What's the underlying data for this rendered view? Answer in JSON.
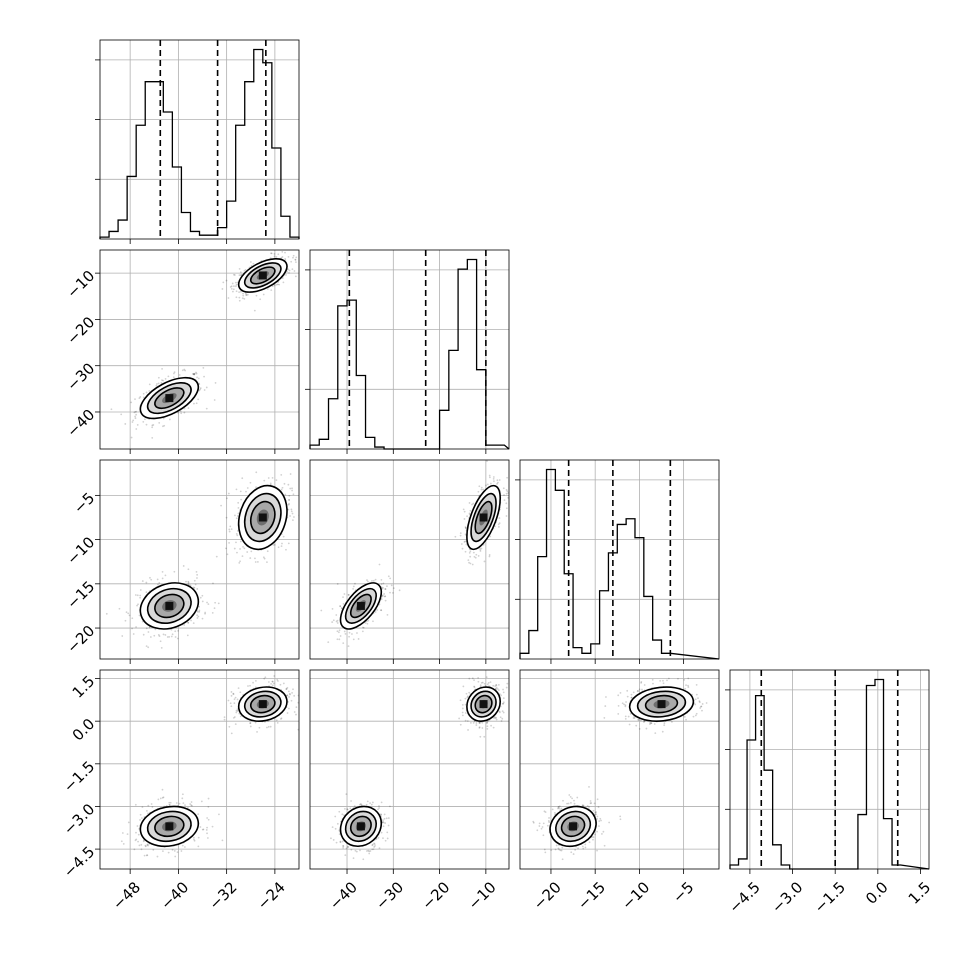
{
  "chart_data": {
    "type": "corner",
    "grid": true,
    "parameters": [
      {
        "name": "",
        "range": [
          -53,
          -20
        ],
        "ticks": [
          -48,
          -40,
          -32,
          -24
        ],
        "tick_labels": [
          "−48",
          "−40",
          "−32",
          "−24"
        ],
        "quantiles": [
          -43,
          -33.5,
          -25.5
        ],
        "modes": [
          {
            "center": -41.5,
            "sd": 2.4,
            "weight": 0.5
          },
          {
            "center": -26,
            "sd": 2.0,
            "weight": 0.5
          }
        ],
        "histogram": {
          "bin_width": 1.5,
          "counts": [
            0.01,
            0.04,
            0.1,
            0.33,
            0.6,
            0.83,
            0.83,
            0.67,
            0.38,
            0.14,
            0.04,
            0.02,
            0.02,
            0.06,
            0.2,
            0.6,
            0.83,
            1.0,
            0.93,
            0.48,
            0.12,
            0.01
          ]
        }
      },
      {
        "name": "",
        "range": [
          -48,
          -5
        ],
        "ticks": [
          -40,
          -30,
          -20,
          -10
        ],
        "tick_labels": [
          "−40",
          "−30",
          "−20",
          "−10"
        ],
        "quantiles": [
          -39.5,
          -23,
          -10
        ],
        "modes": [
          {
            "center": -37,
            "sd": 2.2,
            "weight": 0.5
          },
          {
            "center": -10.5,
            "sd": 1.8,
            "weight": 0.5
          }
        ],
        "histogram": {
          "bin_width": 2.0,
          "counts": [
            0.02,
            0.05,
            0.26,
            0.74,
            0.77,
            0.38,
            0.06,
            0.01,
            0.0,
            0.0,
            0.0,
            0.0,
            0.0,
            0.0,
            0.2,
            0.51,
            0.93,
            0.98,
            0.41,
            0.02,
            0.02
          ]
        }
      },
      {
        "name": "",
        "range": [
          -23.5,
          -1
        ],
        "ticks": [
          -20,
          -15,
          -10,
          -5
        ],
        "tick_labels": [
          "−20",
          "−15",
          "−10",
          "−5"
        ],
        "quantiles": [
          -18,
          -13,
          -6.5
        ],
        "modes": [
          {
            "center": -17.5,
            "sd": 1.3,
            "weight": 0.5
          },
          {
            "center": -7.5,
            "sd": 1.8,
            "weight": 0.5
          }
        ],
        "histogram": {
          "bin_width": 1.0,
          "counts": [
            0.03,
            0.15,
            0.54,
            1.0,
            0.89,
            0.45,
            0.06,
            0.03,
            0.08,
            0.36,
            0.56,
            0.71,
            0.74,
            0.64,
            0.33,
            0.1,
            0.03
          ]
        }
      },
      {
        "name": "",
        "range": [
          -5.2,
          1.8
        ],
        "ticks": [
          -4.5,
          -3.0,
          -1.5,
          0.0,
          1.5
        ],
        "tick_labels": [
          "−4.5",
          "−3.0",
          "−1.5",
          "0.0",
          "1.5"
        ],
        "quantiles": [
          -4.1,
          -1.5,
          0.7
        ],
        "modes": [
          {
            "center": -3.7,
            "sd": 0.35,
            "weight": 0.5
          },
          {
            "center": 0.6,
            "sd": 0.3,
            "weight": 0.5
          }
        ],
        "histogram": {
          "bin_width": 0.3,
          "counts": [
            0.02,
            0.05,
            0.64,
            0.86,
            0.49,
            0.12,
            0.02,
            0.0,
            0.0,
            0.0,
            0.0,
            0.0,
            0.0,
            0.0,
            0.0,
            0.27,
            0.91,
            0.94,
            0.25,
            0.02
          ]
        }
      }
    ],
    "contour_levels_sigma": [
      0.5,
      1.0,
      1.5,
      2.0
    ],
    "scatter_points_per_mode": 450
  }
}
